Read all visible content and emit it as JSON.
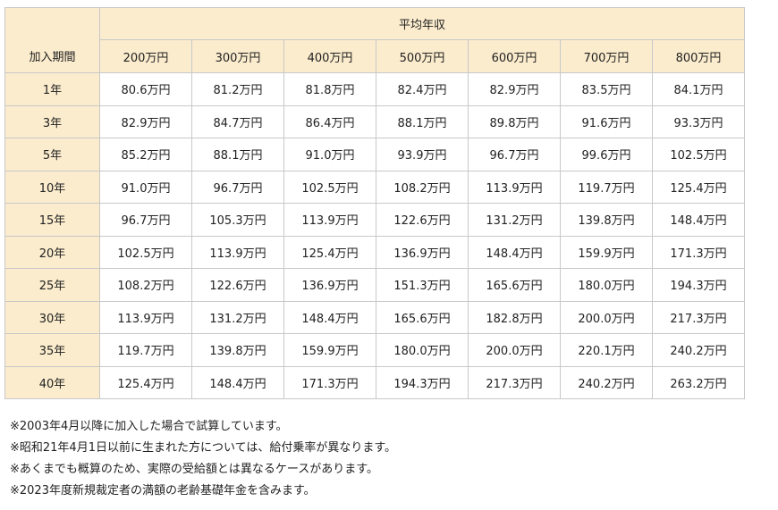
{
  "table": {
    "corner_label": "加入期間",
    "group_header": "平均年収",
    "income_columns": [
      "200万円",
      "300万円",
      "400万円",
      "500万円",
      "600万円",
      "700万円",
      "800万円"
    ],
    "rows": [
      {
        "period": "1年",
        "values": [
          "80.6万円",
          "81.2万円",
          "81.8万円",
          "82.4万円",
          "82.9万円",
          "83.5万円",
          "84.1万円"
        ]
      },
      {
        "period": "3年",
        "values": [
          "82.9万円",
          "84.7万円",
          "86.4万円",
          "88.1万円",
          "89.8万円",
          "91.6万円",
          "93.3万円"
        ]
      },
      {
        "period": "5年",
        "values": [
          "85.2万円",
          "88.1万円",
          "91.0万円",
          "93.9万円",
          "96.7万円",
          "99.6万円",
          "102.5万円"
        ]
      },
      {
        "period": "10年",
        "values": [
          "91.0万円",
          "96.7万円",
          "102.5万円",
          "108.2万円",
          "113.9万円",
          "119.7万円",
          "125.4万円"
        ]
      },
      {
        "period": "15年",
        "values": [
          "96.7万円",
          "105.3万円",
          "113.9万円",
          "122.6万円",
          "131.2万円",
          "139.8万円",
          "148.4万円"
        ]
      },
      {
        "period": "20年",
        "values": [
          "102.5万円",
          "113.9万円",
          "125.4万円",
          "136.9万円",
          "148.4万円",
          "159.9万円",
          "171.3万円"
        ]
      },
      {
        "period": "25年",
        "values": [
          "108.2万円",
          "122.6万円",
          "136.9万円",
          "151.3万円",
          "165.6万円",
          "180.0万円",
          "194.3万円"
        ]
      },
      {
        "period": "30年",
        "values": [
          "113.9万円",
          "131.2万円",
          "148.4万円",
          "165.6万円",
          "182.8万円",
          "200.0万円",
          "217.3万円"
        ]
      },
      {
        "period": "35年",
        "values": [
          "119.7万円",
          "139.8万円",
          "159.9万円",
          "180.0万円",
          "200.0万円",
          "220.1万円",
          "240.2万円"
        ]
      },
      {
        "period": "40年",
        "values": [
          "125.4万円",
          "148.4万円",
          "171.3万円",
          "194.3万円",
          "217.3万円",
          "240.2万円",
          "263.2万円"
        ]
      }
    ]
  },
  "notes": [
    "※2003年4月以降に加入した場合で試算しています。",
    "※昭和21年4月1日以前に生まれた方については、給付乗率が異なります。",
    "※あくまでも概算のため、実際の受給額とは異なるケースがあります。",
    "※2023年度新規裁定者の満額の老齢基礎年金を含みます。"
  ],
  "colors": {
    "header_background": "#fbeccd",
    "cell_background": "#ffffff",
    "border": "#c8c8c8",
    "text": "#222222"
  }
}
